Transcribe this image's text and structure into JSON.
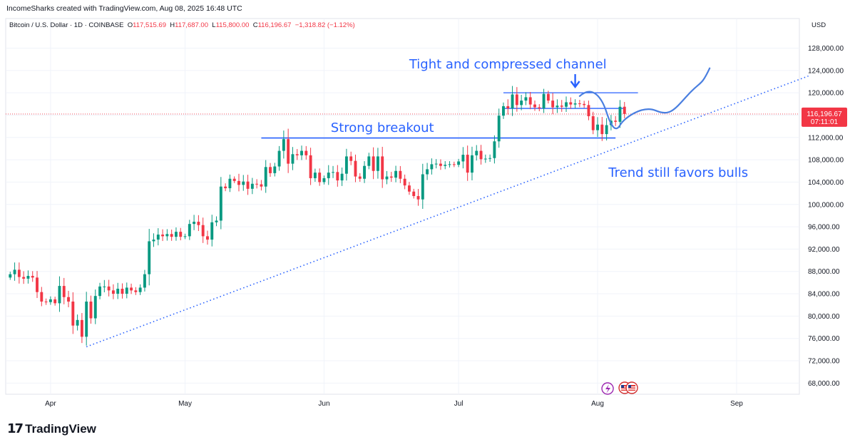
{
  "header": {
    "created": "IncomeSharks created with TradingView.com, Aug 08, 2025 16:48 UTC"
  },
  "symbol": {
    "name": "Bitcoin / U.S. Dollar · 1D · COINBASE",
    "o_label": "O",
    "o": "117,515.69",
    "h_label": "H",
    "h": "117,687.00",
    "l_label": "L",
    "l": "115,800.00",
    "c_label": "C",
    "c": "116,196.67",
    "chg": "−1,318.82 (−1.12%)"
  },
  "currency": "USD",
  "last_price": {
    "value": "116,196.67",
    "countdown": "07:11:01"
  },
  "footer": {
    "brand": "TradingView"
  },
  "colors": {
    "up": "#089981",
    "down": "#f23645",
    "annotation": "#2962ff",
    "trend": "#2962ff",
    "grid": "#f0f3fa"
  },
  "chart_data": {
    "type": "candlestick",
    "y_axis": {
      "ticks": [
        68000,
        72000,
        76000,
        80000,
        84000,
        88000,
        92000,
        96000,
        100000,
        104000,
        108000,
        112000,
        116000,
        120000,
        124000,
        128000
      ],
      "tick_labels": [
        "68,000.00",
        "72,000.00",
        "76,000.00",
        "80,000.00",
        "84,000.00",
        "88,000.00",
        "92,000.00",
        "96,000.00",
        "100,000.00",
        "104,000.00",
        "108,000.00",
        "112,000.00",
        "",
        "120,000.00",
        "124,000.00",
        "128,000.00"
      ],
      "range": [
        66000,
        131000
      ]
    },
    "x_axis": {
      "labels": [
        {
          "label": "Apr",
          "date": "2025-04-01"
        },
        {
          "label": "May",
          "date": "2025-05-01"
        },
        {
          "label": "Jun",
          "date": "2025-06-01"
        },
        {
          "label": "Jul",
          "date": "2025-07-01"
        },
        {
          "label": "Aug",
          "date": "2025-08-01"
        },
        {
          "label": "Sep",
          "date": "2025-09-01"
        }
      ],
      "start": "2025-03-22",
      "end": "2025-09-15"
    },
    "candles_start": "2025-03-23",
    "closes": [
      87500,
      88300,
      87000,
      86700,
      87200,
      86900,
      84300,
      82600,
      82500,
      83000,
      82300,
      85400,
      83400,
      82600,
      78300,
      79300,
      76300,
      82600,
      79600,
      83600,
      85300,
      85300,
      84600,
      84000,
      84900,
      84000,
      85100,
      84600,
      84300,
      85100,
      87500,
      93400,
      93700,
      94600,
      94300,
      94700,
      94200,
      95100,
      94200,
      94300,
      96500,
      96900,
      96300,
      94300,
      93700,
      96800,
      97100,
      103200,
      102900,
      104600,
      104200,
      103500,
      104100,
      102800,
      103700,
      103600,
      103200,
      106700,
      105600,
      106800,
      109600,
      111700,
      107300,
      109000,
      108800,
      109600,
      108800,
      104700,
      105700,
      104000,
      104700,
      105700,
      105800,
      104300,
      105500,
      108600,
      107800,
      105000,
      104600,
      106900,
      108600,
      106000,
      108600,
      104500,
      105000,
      104800,
      106000,
      104600,
      103400,
      102300,
      101500,
      100900,
      105400,
      106300,
      107200,
      107300,
      106900,
      107100,
      107200,
      107100,
      107700,
      108900,
      105700,
      108800,
      109600,
      108100,
      108200,
      108300,
      111300,
      115900,
      117600,
      117200,
      119700,
      117800,
      118600,
      119200,
      117900,
      117400,
      117200,
      119800,
      118600,
      117400,
      117700,
      117500,
      118300,
      117900,
      118100,
      118000,
      117800,
      115800,
      113300,
      114300,
      112600,
      114200,
      115000,
      114800,
      117500,
      116200
    ],
    "channel_top": 120000,
    "channel_bottom": 117200,
    "breakout_level": 111900,
    "trendline": {
      "from": {
        "date": "2025-04-09",
        "value": 74500
      },
      "to": {
        "date": "2025-09-17",
        "value": 123000
      }
    },
    "annotations": {
      "channel": "Tight and compressed channel",
      "breakout": "Strong breakout",
      "trend": "Trend still favors bulls"
    },
    "last_price": 116196.67
  }
}
